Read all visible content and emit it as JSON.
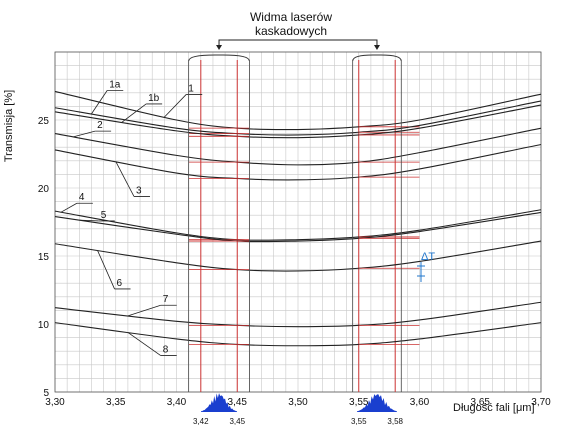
{
  "chart_data": {
    "type": "line",
    "title": "",
    "annotation_title": [
      "Widma laserów",
      "kaskadowych"
    ],
    "xlabel": "Długość fali [μm]",
    "ylabel": "Transmisja [%]",
    "xlim": [
      3.3,
      3.7
    ],
    "ylim": [
      5,
      30
    ],
    "grid": true,
    "x_ticks": [
      "3,30",
      "3,35",
      "3,40",
      "3,45",
      "3,50",
      "3,55",
      "3,60",
      "3,65",
      "3,70"
    ],
    "y_ticks": [
      "5",
      "10",
      "15",
      "20",
      "25"
    ],
    "laser_line_labels": [
      "3,42",
      "3,45",
      "3,55",
      "3,58"
    ],
    "laser_lines_x": [
      3.42,
      3.45,
      3.55,
      3.58
    ],
    "delta_label": "ΔT",
    "colors": {
      "curve": "#222222",
      "grid": "#c8c8c8",
      "laser": "#cc3333",
      "spectrum": "#1a3fcf",
      "delta": "#2277cc"
    },
    "series": [
      {
        "name": "1",
        "x": [
          3.3,
          3.4,
          3.45,
          3.5,
          3.55,
          3.6,
          3.7
        ],
        "y": [
          27.1,
          25.0,
          24.4,
          24.3,
          24.5,
          25.0,
          26.9
        ]
      },
      {
        "name": "1a",
        "x": [
          3.3,
          3.4,
          3.45,
          3.5,
          3.55,
          3.6,
          3.7
        ],
        "y": [
          25.9,
          24.4,
          24.0,
          23.9,
          24.1,
          24.6,
          26.4
        ]
      },
      {
        "name": "1b",
        "x": [
          3.3,
          3.4,
          3.45,
          3.5,
          3.55,
          3.6,
          3.7
        ],
        "y": [
          25.6,
          24.2,
          23.8,
          23.7,
          23.9,
          24.4,
          26.1
        ]
      },
      {
        "name": "2",
        "x": [
          3.3,
          3.4,
          3.45,
          3.5,
          3.55,
          3.6,
          3.7
        ],
        "y": [
          24.0,
          22.4,
          21.9,
          21.7,
          21.9,
          22.6,
          24.4
        ]
      },
      {
        "name": "3",
        "x": [
          3.3,
          3.4,
          3.45,
          3.5,
          3.55,
          3.6,
          3.7
        ],
        "y": [
          22.8,
          21.1,
          20.7,
          20.6,
          20.8,
          21.4,
          23.2
        ]
      },
      {
        "name": "4",
        "x": [
          3.3,
          3.4,
          3.45,
          3.5,
          3.55,
          3.6,
          3.7
        ],
        "y": [
          18.3,
          16.7,
          16.2,
          16.2,
          16.4,
          16.9,
          18.4
        ]
      },
      {
        "name": "5",
        "x": [
          3.3,
          3.4,
          3.45,
          3.5,
          3.55,
          3.6,
          3.7
        ],
        "y": [
          17.9,
          16.6,
          16.1,
          16.1,
          16.3,
          16.8,
          18.2
        ]
      },
      {
        "name": "6",
        "x": [
          3.3,
          3.4,
          3.45,
          3.5,
          3.55,
          3.6,
          3.7
        ],
        "y": [
          15.9,
          14.5,
          14.0,
          13.9,
          14.1,
          14.6,
          16.1
        ]
      },
      {
        "name": "7",
        "x": [
          3.3,
          3.4,
          3.45,
          3.5,
          3.55,
          3.6,
          3.7
        ],
        "y": [
          11.2,
          10.2,
          9.9,
          9.8,
          9.9,
          10.3,
          11.6
        ]
      },
      {
        "name": "8",
        "x": [
          3.3,
          3.4,
          3.45,
          3.5,
          3.55,
          3.6,
          3.7
        ],
        "y": [
          10.1,
          8.9,
          8.5,
          8.4,
          8.5,
          8.9,
          10.1
        ]
      }
    ]
  }
}
